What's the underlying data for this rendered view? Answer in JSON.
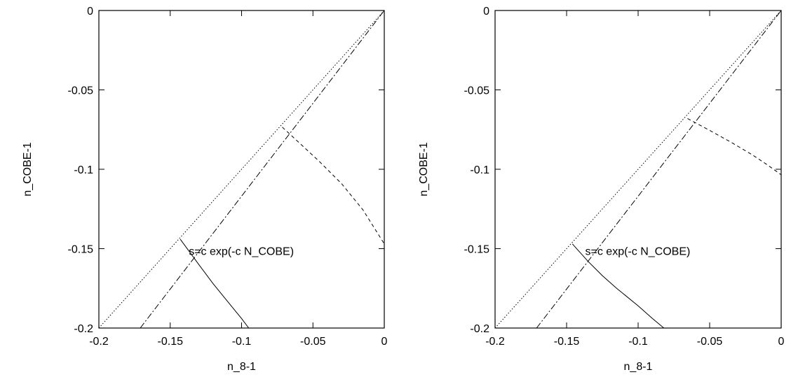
{
  "chart_data": [
    {
      "type": "line",
      "xlabel": "n_8-1",
      "ylabel": "n_COBE-1",
      "xlim": [
        -0.2,
        0
      ],
      "ylim": [
        -0.2,
        0
      ],
      "xticks": [
        "-0.2",
        "-0.15",
        "-0.1",
        "-0.05",
        "0"
      ],
      "yticks": [
        "-0.2",
        "-0.15",
        "-0.1",
        "-0.05",
        "0"
      ],
      "annotation": "s=c exp(-c N_COBE)",
      "grid": false,
      "series": [
        {
          "style": "dotted",
          "x": [
            -0.2,
            0
          ],
          "y": [
            -0.2,
            0
          ]
        },
        {
          "style": "dashdot",
          "x": [
            -0.171,
            0
          ],
          "y": [
            -0.2,
            0
          ]
        },
        {
          "style": "dashed",
          "x": [
            -0.0715,
            -0.06,
            -0.045,
            -0.03,
            -0.015,
            0
          ],
          "y": [
            -0.0735,
            -0.083,
            -0.0955,
            -0.109,
            -0.1255,
            -0.147
          ]
        },
        {
          "style": "solid",
          "x": [
            -0.143,
            -0.13,
            -0.12,
            -0.11,
            -0.1,
            -0.095
          ],
          "y": [
            -0.144,
            -0.16,
            -0.172,
            -0.183,
            -0.194,
            -0.2
          ]
        }
      ]
    },
    {
      "type": "line",
      "xlabel": "n_8-1",
      "ylabel": "n_COBE-1",
      "xlim": [
        -0.2,
        0
      ],
      "ylim": [
        -0.2,
        0
      ],
      "xticks": [
        "-0.2",
        "-0.15",
        "-0.1",
        "-0.05",
        "0"
      ],
      "yticks": [
        "-0.2",
        "-0.15",
        "-0.1",
        "-0.05",
        "0"
      ],
      "annotation": "s=c exp(-c N_COBE)",
      "grid": false,
      "series": [
        {
          "style": "dotted",
          "x": [
            -0.2,
            0
          ],
          "y": [
            -0.2,
            0
          ]
        },
        {
          "style": "dashdot",
          "x": [
            -0.171,
            0
          ],
          "y": [
            -0.2,
            0
          ]
        },
        {
          "style": "dashed",
          "x": [
            -0.0655,
            -0.05,
            -0.035,
            -0.02,
            -0.01,
            0
          ],
          "y": [
            -0.068,
            -0.0755,
            -0.083,
            -0.091,
            -0.097,
            -0.1035
          ]
        },
        {
          "style": "solid",
          "x": [
            -0.146,
            -0.135,
            -0.125,
            -0.115,
            -0.1,
            -0.09,
            -0.082
          ],
          "y": [
            -0.147,
            -0.158,
            -0.167,
            -0.175,
            -0.186,
            -0.194,
            -0.2
          ]
        }
      ]
    }
  ]
}
